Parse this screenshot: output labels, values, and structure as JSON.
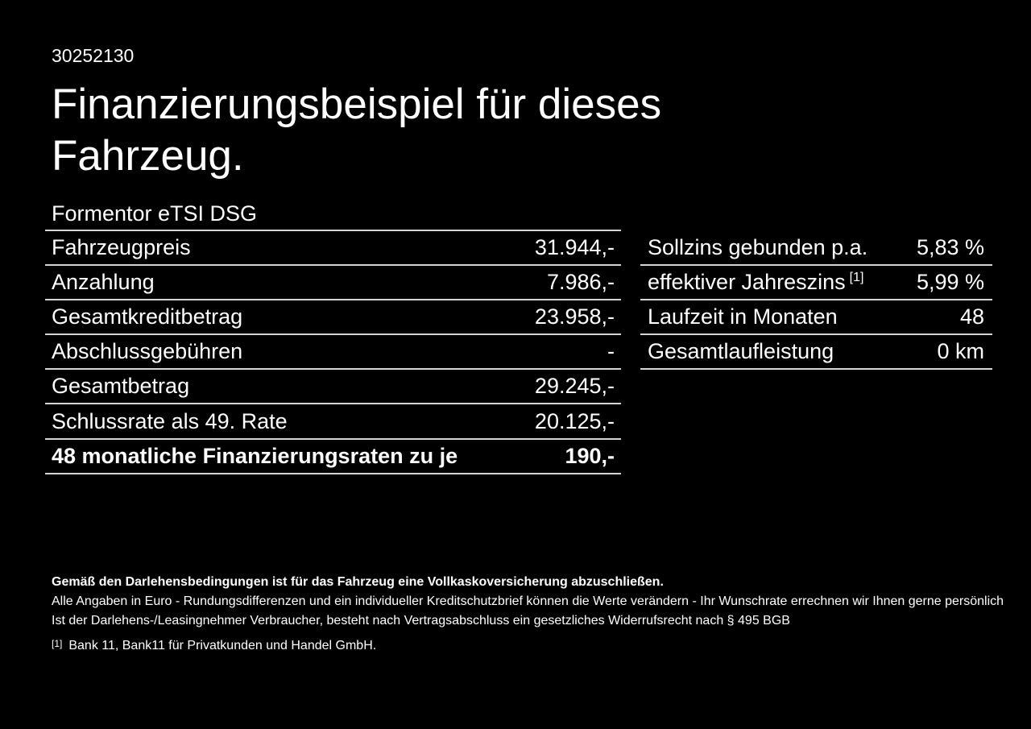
{
  "colors": {
    "background": "#000000",
    "text": "#ffffff",
    "divider": "#d5d5d5"
  },
  "header": {
    "doc_id": "30252130",
    "title": "Finanzierungsbeispiel für dieses Fahrzeug.",
    "model": "Formentor eTSI DSG"
  },
  "finance_table": {
    "rows": [
      {
        "label": "Fahrzeugpreis",
        "value": "31.944,-",
        "bold": false
      },
      {
        "label": "Anzahlung",
        "value": "7.986,-",
        "bold": false
      },
      {
        "label": "Gesamtkreditbetrag",
        "value": "23.958,-",
        "bold": false
      },
      {
        "label": "Abschlussgebühren",
        "value": "-",
        "bold": false
      },
      {
        "label": "Gesamtbetrag",
        "value": "29.245,-",
        "bold": false
      },
      {
        "label": "Schlussrate als 49. Rate",
        "value": "20.125,-",
        "bold": false
      },
      {
        "label": "48 monatliche Finanzierungsraten zu je",
        "value": "190,-",
        "bold": true
      }
    ]
  },
  "conditions_table": {
    "rows": [
      {
        "label": "Sollzins gebunden p.a.",
        "value": "5,83 %"
      },
      {
        "label": "effektiver Jahreszins",
        "sup": "[1]",
        "value": "5,99 %"
      },
      {
        "label": "Laufzeit in Monaten",
        "value": "48"
      },
      {
        "label": "Gesamtlaufleistung",
        "value": "0 km"
      }
    ]
  },
  "footer": {
    "bold_note": "Gemäß den Darlehensbedingungen ist für das Fahrzeug eine Vollkaskoversicherung abzuschließen.",
    "note_line_1": "Alle Angaben in Euro - Rundungsdifferenzen und ein individueller Kreditschutzbrief können die Werte verändern - Ihr Wunschrate errechnen wir Ihnen gerne persönlich",
    "note_line_2": "Ist der Darlehens-/Leasingnehmer Verbraucher, besteht nach Vertragsabschluss ein gesetzliches Widerrufsrecht nach § 495 BGB",
    "footnote_marker": "[1]",
    "footnote_text": "Bank 11, Bank11 für Privatkunden und Handel GmbH."
  }
}
